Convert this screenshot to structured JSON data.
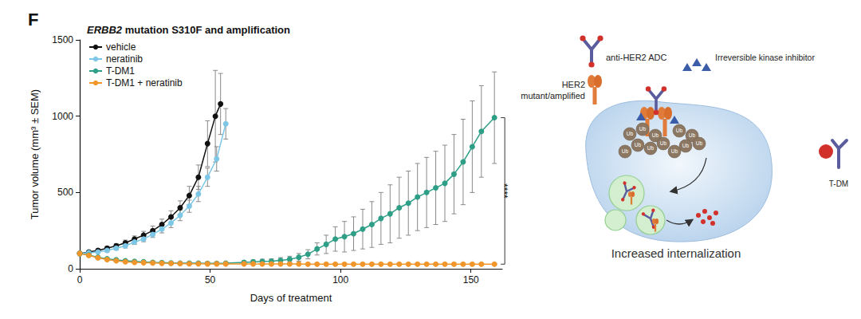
{
  "chart_data": {
    "type": "line",
    "panel_label": "F",
    "title": "ERBB2 mutation S310F and amplification",
    "x_label": "Days of treatment",
    "y_label": "Tumor volume (mm³ ± SEM)",
    "xlim": [
      0,
      162
    ],
    "xticks": [
      0,
      50,
      100,
      150
    ],
    "ylim": [
      0,
      1500
    ],
    "yticks": [
      0,
      500,
      1000,
      1500
    ],
    "grid": false,
    "legend": "upper left",
    "marker": "circle",
    "line_style": "solid",
    "series": [
      {
        "name": "vehicle",
        "color": "#111111",
        "x": [
          0,
          3.5,
          7,
          10.5,
          14,
          17.5,
          21,
          24.5,
          28,
          31.5,
          35,
          38.5,
          42,
          45.5,
          49,
          52,
          54
        ],
        "values": [
          100,
          110,
          120,
          135,
          150,
          170,
          195,
          220,
          250,
          290,
          340,
          400,
          480,
          600,
          820,
          1000,
          1080
        ],
        "errors": [
          5,
          8,
          10,
          12,
          15,
          18,
          20,
          25,
          30,
          35,
          40,
          45,
          60,
          80,
          150,
          300,
          200
        ]
      },
      {
        "name": "neratinib",
        "color": "#7cc6e6",
        "x": [
          0,
          3.5,
          7,
          10.5,
          14,
          17.5,
          21,
          24.5,
          28,
          31.5,
          35,
          38.5,
          42,
          45.5,
          49,
          52.5,
          56
        ],
        "values": [
          100,
          105,
          110,
          120,
          135,
          150,
          175,
          195,
          225,
          260,
          300,
          350,
          410,
          490,
          600,
          720,
          950
        ],
        "errors": [
          5,
          6,
          8,
          10,
          12,
          14,
          16,
          18,
          20,
          25,
          30,
          35,
          40,
          50,
          60,
          80,
          100
        ]
      },
      {
        "name": "T-DM1",
        "color": "#2e9e86",
        "x": [
          0,
          3.5,
          7,
          10.5,
          14,
          17.5,
          21,
          24.5,
          28,
          31.5,
          35,
          38.5,
          42,
          45.5,
          49,
          52.5,
          56,
          63,
          66.5,
          70,
          73.5,
          77,
          80.5,
          84,
          87.5,
          91,
          94.5,
          98,
          101.5,
          105,
          108.5,
          112,
          115.5,
          119,
          122.5,
          126,
          129.5,
          133,
          136.5,
          140,
          143.5,
          147,
          150.5,
          154,
          159
        ],
        "values": [
          100,
          90,
          75,
          65,
          58,
          52,
          48,
          45,
          42,
          40,
          38,
          37,
          36,
          36,
          35,
          35,
          36,
          42,
          45,
          48,
          50,
          55,
          62,
          75,
          95,
          130,
          160,
          195,
          210,
          230,
          260,
          290,
          330,
          360,
          400,
          430,
          470,
          500,
          530,
          560,
          620,
          700,
          800,
          900,
          990
        ],
        "errors": [
          5,
          5,
          5,
          5,
          5,
          5,
          5,
          5,
          5,
          5,
          5,
          5,
          5,
          5,
          5,
          5,
          6,
          10,
          12,
          14,
          15,
          18,
          20,
          25,
          30,
          40,
          60,
          80,
          100,
          110,
          130,
          150,
          170,
          190,
          200,
          210,
          220,
          230,
          240,
          250,
          260,
          280,
          300,
          300,
          300
        ]
      },
      {
        "name": "T-DM1 + neratinib",
        "color": "#f0962a",
        "x": [
          0,
          3.5,
          7,
          10.5,
          14,
          17.5,
          21,
          24.5,
          28,
          31.5,
          35,
          38.5,
          42,
          45.5,
          49,
          52.5,
          56,
          63,
          66.5,
          70,
          73.5,
          77,
          80.5,
          84,
          87.5,
          91,
          94.5,
          98,
          101.5,
          105,
          108.5,
          112,
          115.5,
          119,
          122.5,
          126,
          129.5,
          133,
          136.5,
          140,
          143.5,
          147,
          150.5,
          154,
          159
        ],
        "values": [
          100,
          88,
          72,
          60,
          52,
          46,
          42,
          40,
          38,
          36,
          35,
          34,
          33,
          33,
          32,
          32,
          32,
          32,
          32,
          31,
          31,
          31,
          31,
          31,
          30,
          30,
          30,
          30,
          30,
          30,
          30,
          30,
          30,
          30,
          30,
          30,
          30,
          30,
          30,
          30,
          30,
          30,
          30,
          30,
          30
        ],
        "errors": [
          5,
          5,
          5,
          5,
          4,
          4,
          4,
          4,
          4,
          4,
          4,
          4,
          4,
          4,
          4,
          4,
          4,
          4,
          4,
          4,
          4,
          4,
          4,
          4,
          4,
          4,
          4,
          4,
          4,
          4,
          4,
          4,
          4,
          4,
          4,
          4,
          4,
          4,
          4,
          4,
          4,
          4,
          4,
          4,
          4
        ]
      }
    ],
    "annotations": [
      {
        "text": "****",
        "series": [
          "T-DM1",
          "T-DM1 + neratinib"
        ]
      }
    ]
  },
  "diagram": {
    "adc_label": "anti-HER2 ADC",
    "inhibitor_label": "Irreversible kinase inhibitor",
    "receptor_label": [
      "HER2",
      "mutant/amplified"
    ],
    "ubiquitin_labels": [
      "Ub",
      "Ub",
      "Ub",
      "Ub",
      "Ub",
      "Ub",
      "Ub",
      "Ub",
      "Ub",
      "Ub",
      "Ub",
      "Ub"
    ],
    "caption": "Increased internalization",
    "side_label": "T-DM"
  }
}
